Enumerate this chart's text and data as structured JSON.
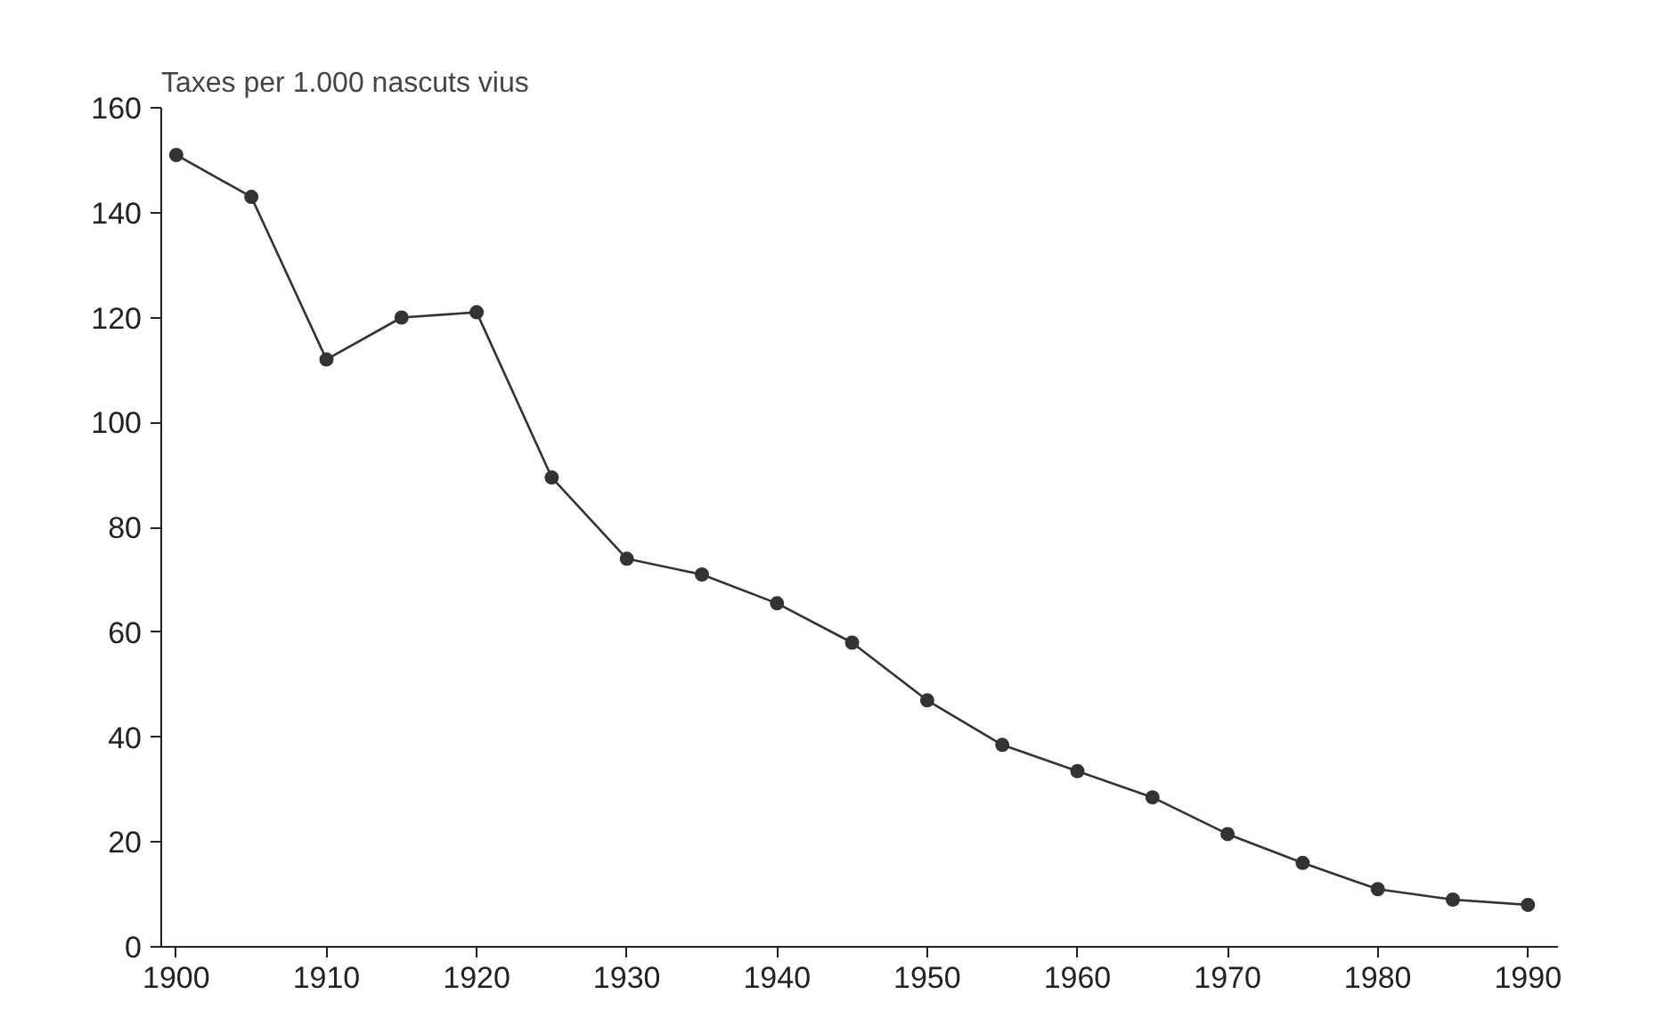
{
  "chart_data": {
    "type": "line",
    "ylabel": "Taxes per 1.000 nascuts vius",
    "x": [
      1900,
      1905,
      1910,
      1915,
      1920,
      1925,
      1930,
      1935,
      1940,
      1945,
      1950,
      1955,
      1960,
      1965,
      1970,
      1975,
      1980,
      1985,
      1990
    ],
    "series": [
      {
        "color": "#333333",
        "values": [
          151,
          143,
          112,
          120,
          121,
          89.5,
          74,
          71,
          65.5,
          58,
          47,
          38.5,
          33.5,
          28.5,
          21.5,
          16,
          11,
          9,
          8
        ]
      }
    ],
    "xlim": [
      1899,
      1992
    ],
    "ylim": [
      0,
      160
    ],
    "xticks": [
      1900,
      1910,
      1920,
      1930,
      1940,
      1950,
      1960,
      1970,
      1980,
      1990
    ],
    "yticks": [
      0,
      20,
      40,
      60,
      80,
      100,
      120,
      140,
      160
    ],
    "grid": false,
    "marker": "circle",
    "line_style": "solid"
  }
}
